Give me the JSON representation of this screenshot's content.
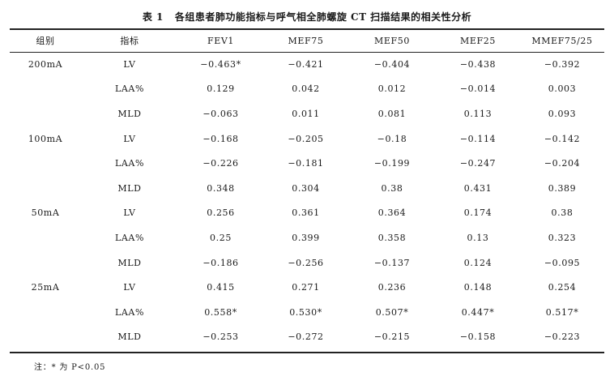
{
  "caption": {
    "label": "表 1",
    "title": "各组患者肺功能指标与呼气相全肺螺旋 CT 扫描结果的相关性分析"
  },
  "columns": [
    "组别",
    "指标",
    "FEV1",
    "MEF75",
    "MEF50",
    "MEF25",
    "MMEF75/25"
  ],
  "groups": [
    {
      "name": "200mA",
      "rows": [
        {
          "indicator": "LV",
          "values": [
            "−0.463*",
            "−0.421",
            "−0.404",
            "−0.438",
            "−0.392"
          ]
        },
        {
          "indicator": "LAA%",
          "values": [
            "0.129",
            "0.042",
            "0.012",
            "−0.014",
            "0.003"
          ]
        },
        {
          "indicator": "MLD",
          "values": [
            "−0.063",
            "0.011",
            "0.081",
            "0.113",
            "0.093"
          ]
        }
      ]
    },
    {
      "name": "100mA",
      "rows": [
        {
          "indicator": "LV",
          "values": [
            "−0.168",
            "−0.205",
            "−0.18",
            "−0.114",
            "−0.142"
          ]
        },
        {
          "indicator": "LAA%",
          "values": [
            "−0.226",
            "−0.181",
            "−0.199",
            "−0.247",
            "−0.204"
          ]
        },
        {
          "indicator": "MLD",
          "values": [
            "0.348",
            "0.304",
            "0.38",
            "0.431",
            "0.389"
          ]
        }
      ]
    },
    {
      "name": "50mA",
      "rows": [
        {
          "indicator": "LV",
          "values": [
            "0.256",
            "0.361",
            "0.364",
            "0.174",
            "0.38"
          ]
        },
        {
          "indicator": "LAA%",
          "values": [
            "0.25",
            "0.399",
            "0.358",
            "0.13",
            "0.323"
          ]
        },
        {
          "indicator": "MLD",
          "values": [
            "−0.186",
            "−0.256",
            "−0.137",
            "0.124",
            "−0.095"
          ]
        }
      ]
    },
    {
      "name": "25mA",
      "rows": [
        {
          "indicator": "LV",
          "values": [
            "0.415",
            "0.271",
            "0.236",
            "0.148",
            "0.254"
          ]
        },
        {
          "indicator": "LAA%",
          "values": [
            "0.558*",
            "0.530*",
            "0.507*",
            "0.447*",
            "0.517*"
          ]
        },
        {
          "indicator": "MLD",
          "values": [
            "−0.253",
            "−0.272",
            "−0.215",
            "−0.158",
            "−0.223"
          ]
        }
      ]
    }
  ],
  "footnote": "注：* 为 P<0.05"
}
